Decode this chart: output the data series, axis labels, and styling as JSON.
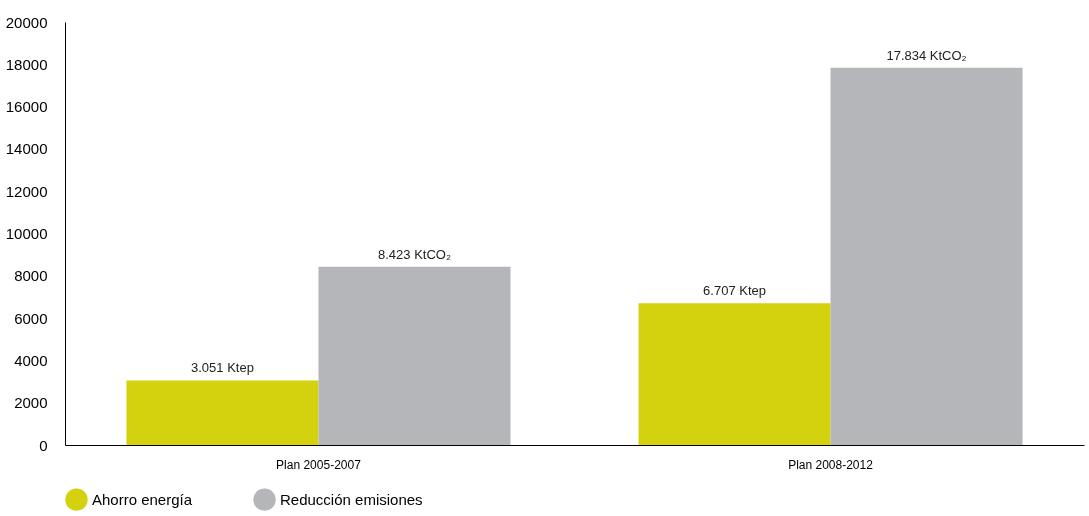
{
  "chart_data": {
    "type": "bar",
    "categories": [
      "Plan 2005-2007",
      "Plan 2008-2012"
    ],
    "series": [
      {
        "name": "Ahorro energía",
        "color": "#d4d10f",
        "values": [
          3051,
          6707
        ],
        "value_labels": [
          "3.051 Ktep",
          "6.707 Ktep"
        ]
      },
      {
        "name": "Reducción emisiones",
        "color": "#b5b6b9",
        "values": [
          8423,
          17834
        ],
        "value_labels": [
          "8.423 KtCO₂",
          "17.834 KtCO₂"
        ]
      }
    ],
    "ylim": [
      0,
      20000
    ],
    "yticks": [
      0,
      2000,
      4000,
      6000,
      8000,
      10000,
      12000,
      14000,
      16000,
      18000,
      20000
    ],
    "grid": false,
    "legend": "bottom"
  }
}
